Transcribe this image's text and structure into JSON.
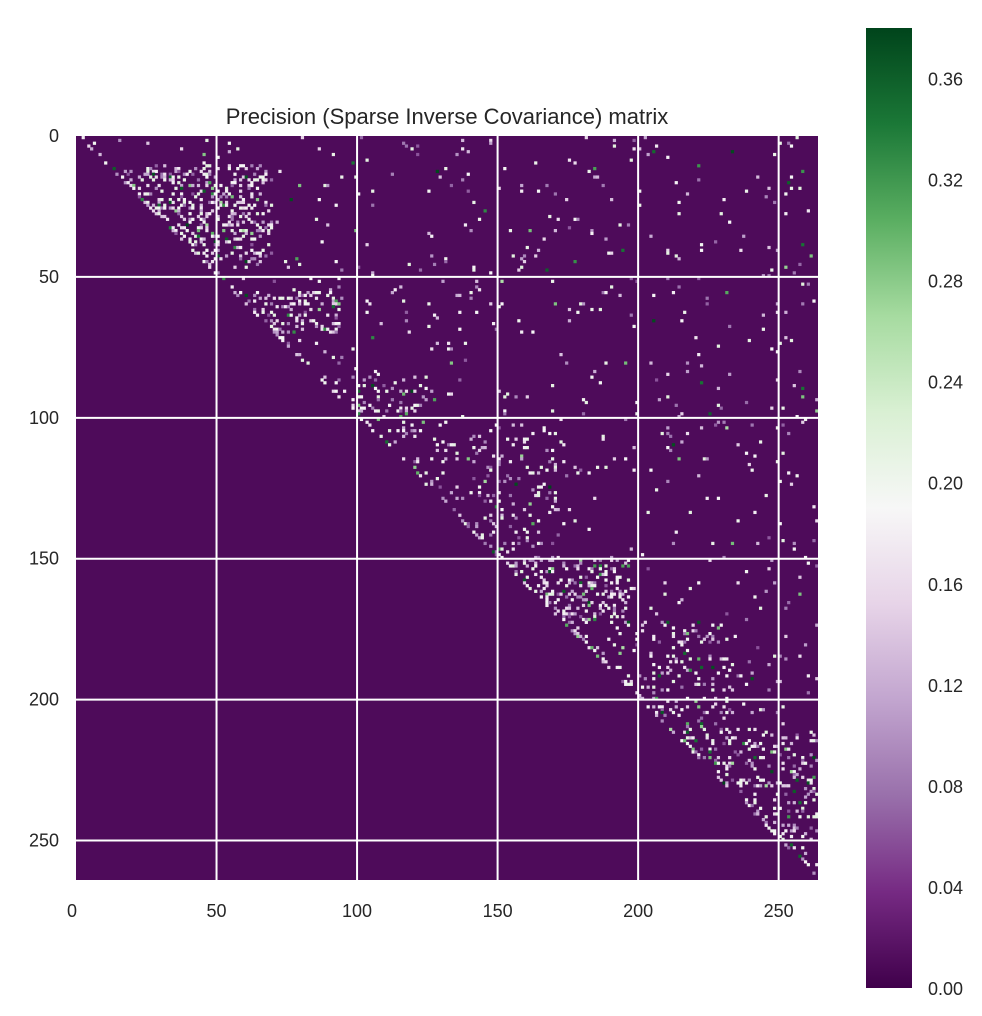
{
  "chart_data": {
    "type": "heatmap",
    "title": "Precision (Sparse Inverse Covariance) matrix",
    "matrix_size": 264,
    "xlim": [
      0,
      264
    ],
    "ylim": [
      264,
      0
    ],
    "x_ticks": [
      0,
      50,
      100,
      150,
      200,
      250
    ],
    "x_tick_labels": [
      "0",
      "50",
      "100",
      "150",
      "200",
      "250"
    ],
    "y_ticks": [
      0,
      50,
      100,
      150,
      200,
      250
    ],
    "y_tick_labels": [
      "0",
      "50",
      "100",
      "150",
      "200",
      "250"
    ],
    "grid": true,
    "structure": "upper-triangular sparse; nonzero entries concentrated in diagonal blocks (approx 10-45, 55-70, 85-100, 150-172, 210-245) and scattered off-diagonal",
    "colormap": {
      "name": "PRGn",
      "range": [
        0.0,
        0.38
      ],
      "stops": [
        "#40004b",
        "#762a83",
        "#9970ab",
        "#c2a5cf",
        "#e7d4e8",
        "#f7f7f7",
        "#d9f0d3",
        "#a6dba0",
        "#5aae61",
        "#1b7837",
        "#00441b"
      ]
    },
    "background_value": 0.01,
    "colorbar": {
      "ticks": [
        0.0,
        0.04,
        0.08,
        0.12,
        0.16,
        0.2,
        0.24,
        0.28,
        0.32,
        0.36
      ],
      "tick_labels": [
        "0.00",
        "0.04",
        "0.08",
        "0.12",
        "0.16",
        "0.20",
        "0.24",
        "0.28",
        "0.32",
        "0.36"
      ]
    }
  }
}
